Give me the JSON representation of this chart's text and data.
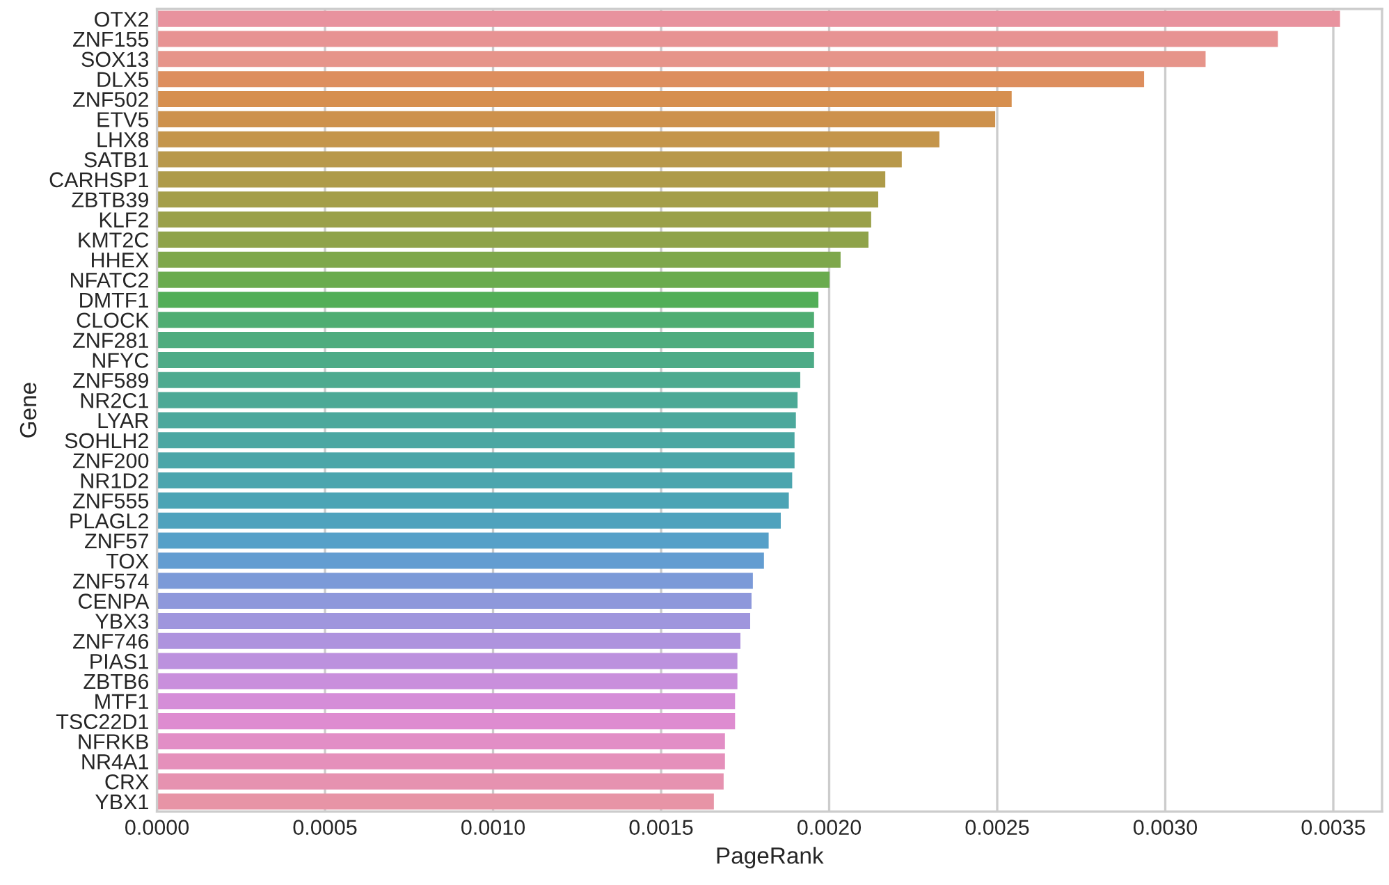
{
  "chart_data": {
    "type": "bar",
    "orientation": "horizontal",
    "xlabel": "PageRank",
    "ylabel": "Gene",
    "categories": [
      "OTX2",
      "ZNF155",
      "SOX13",
      "DLX5",
      "ZNF502",
      "ETV5",
      "LHX8",
      "SATB1",
      "CARHSP1",
      "ZBTB39",
      "KLF2",
      "KMT2C",
      "HHEX",
      "NFATC2",
      "DMTF1",
      "CLOCK",
      "ZNF281",
      "NFYC",
      "ZNF589",
      "NR2C1",
      "LYAR",
      "SOHLH2",
      "ZNF200",
      "NR1D2",
      "ZNF555",
      "PLAGL2",
      "ZNF57",
      "TOX",
      "ZNF574",
      "CENPA",
      "YBX3",
      "ZNF746",
      "PIAS1",
      "ZBTB6",
      "MTF1",
      "TSC22D1",
      "NFRKB",
      "NR4A1",
      "CRX",
      "YBX1"
    ],
    "values": [
      0.00352,
      0.003335,
      0.00312,
      0.002937,
      0.002543,
      0.002494,
      0.002328,
      0.002216,
      0.002167,
      0.002146,
      0.002125,
      0.002117,
      0.002034,
      0.002001,
      0.001968,
      0.001955,
      0.001955,
      0.001955,
      0.001914,
      0.001906,
      0.001901,
      0.001897,
      0.001897,
      0.00189,
      0.00188,
      0.001856,
      0.00182,
      0.001806,
      0.001773,
      0.001769,
      0.001765,
      0.001736,
      0.001727,
      0.001727,
      0.00172,
      0.00172,
      0.00169,
      0.00169,
      0.001686,
      0.001657
    ],
    "colors": [
      "#e8929e",
      "#e79393",
      "#e6948a",
      "#dd8e5e",
      "#d68f4f",
      "#cd914c",
      "#c4954b",
      "#b8984a",
      "#ae9b49",
      "#a49e49",
      "#9aa049",
      "#8fa34a",
      "#7ea74b",
      "#6aab4e",
      "#52ae57",
      "#4fad72",
      "#4eac7e",
      "#4dab87",
      "#4daa8f",
      "#4ca996",
      "#4ca89c",
      "#4ba7a2",
      "#4ba6a8",
      "#4ba5ae",
      "#4ca4b5",
      "#4fa2bd",
      "#56a0c8",
      "#639dd1",
      "#7b9ad8",
      "#8e98db",
      "#9f96dd",
      "#ae93de",
      "#bc91de",
      "#c98fdc",
      "#d58dd8",
      "#de8cd0",
      "#e28ec6",
      "#e590bb",
      "#e692b0",
      "#e794a6"
    ],
    "xlim": [
      0,
      0.003645
    ],
    "xticks": [
      {
        "value": 0,
        "label": "0.0000"
      },
      {
        "value": 0.0005,
        "label": "0.0005"
      },
      {
        "value": 0.001,
        "label": "0.0010"
      },
      {
        "value": 0.0015,
        "label": "0.0015"
      },
      {
        "value": 0.002,
        "label": "0.0020"
      },
      {
        "value": 0.0025,
        "label": "0.0025"
      },
      {
        "value": 0.003,
        "label": "0.0030"
      },
      {
        "value": 0.0035,
        "label": "0.0035"
      }
    ],
    "grid": "x",
    "legend": false
  }
}
